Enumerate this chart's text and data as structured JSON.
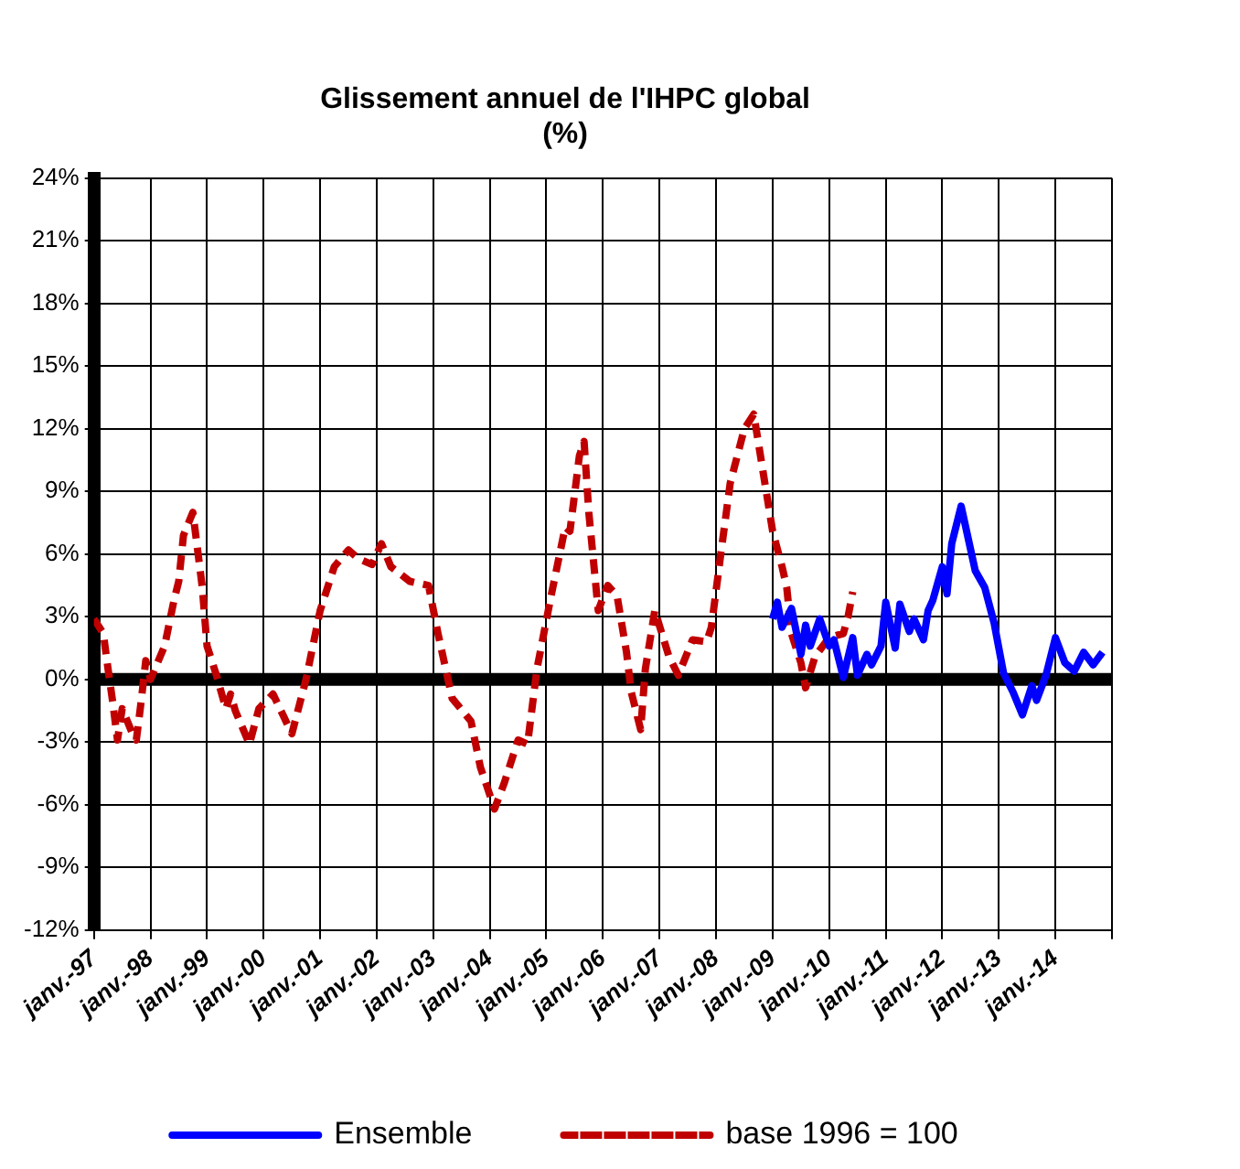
{
  "chart_data": {
    "type": "line",
    "title": "Glissement annuel de l'IHPC global\n(%)",
    "xlim": [
      "1997-01",
      "2015-01"
    ],
    "xticks": [
      {
        "value": "1997-01",
        "label": "janv.-97"
      },
      {
        "value": "1998-01",
        "label": "janv.-98"
      },
      {
        "value": "1999-01",
        "label": "janv.-99"
      },
      {
        "value": "2000-01",
        "label": "janv.-00"
      },
      {
        "value": "2001-01",
        "label": "janv.-01"
      },
      {
        "value": "2002-01",
        "label": "janv.-02"
      },
      {
        "value": "2003-01",
        "label": "janv.-03"
      },
      {
        "value": "2004-01",
        "label": "janv.-04"
      },
      {
        "value": "2005-01",
        "label": "janv.-05"
      },
      {
        "value": "2006-01",
        "label": "janv.-06"
      },
      {
        "value": "2007-01",
        "label": "janv.-07"
      },
      {
        "value": "2008-01",
        "label": "janv.-08"
      },
      {
        "value": "2009-01",
        "label": "janv.-09"
      },
      {
        "value": "2010-01",
        "label": "janv.-10"
      },
      {
        "value": "2011-01",
        "label": "janv.-11"
      },
      {
        "value": "2012-01",
        "label": "janv.-12"
      },
      {
        "value": "2013-01",
        "label": "janv.-13"
      },
      {
        "value": "2014-01",
        "label": "janv.-14"
      },
      {
        "value": "2015-01",
        "label": null
      }
    ],
    "ylim": [
      -12,
      24
    ],
    "yticks": [
      {
        "value": -12,
        "label": "-12%"
      },
      {
        "value": -9,
        "label": "-9%"
      },
      {
        "value": -6,
        "label": "-6%"
      },
      {
        "value": -3,
        "label": "-3%"
      },
      {
        "value": 0,
        "label": "0%"
      },
      {
        "value": 3,
        "label": "3%"
      },
      {
        "value": 6,
        "label": "6%"
      },
      {
        "value": 9,
        "label": "9%"
      },
      {
        "value": 12,
        "label": "12%"
      },
      {
        "value": 15,
        "label": "15%"
      },
      {
        "value": 18,
        "label": "18%"
      },
      {
        "value": 21,
        "label": "21%"
      },
      {
        "value": 24,
        "label": "24%"
      }
    ],
    "grid": true,
    "legend": "bottom",
    "marker": "none",
    "ref_lines": [
      {
        "axis": "y",
        "value": 0,
        "color": "#000000"
      }
    ],
    "series": [
      {
        "name": "Ensemble",
        "color": "#0000ff",
        "line_style": "solid",
        "x": [
          "2009-01",
          "2009-02",
          "2009-03",
          "2009-05",
          "2009-07",
          "2009-08",
          "2009-09",
          "2009-11",
          "2010-01",
          "2010-02",
          "2010-04",
          "2010-06",
          "2010-07",
          "2010-09",
          "2010-10",
          "2010-12",
          "2011-01",
          "2011-03",
          "2011-04",
          "2011-06",
          "2011-07",
          "2011-09",
          "2011-10",
          "2011-11",
          "2012-01",
          "2012-02",
          "2012-03",
          "2012-05",
          "2012-08",
          "2012-10",
          "2012-12",
          "2013-02",
          "2013-04",
          "2013-06",
          "2013-08",
          "2013-09",
          "2013-11",
          "2014-01",
          "2014-03",
          "2014-05",
          "2014-07",
          "2014-09",
          "2014-11"
        ],
        "values": [
          2.9,
          3.7,
          2.5,
          3.4,
          1.2,
          2.6,
          1.6,
          2.9,
          1.6,
          1.9,
          0.1,
          2.0,
          0.2,
          1.2,
          0.7,
          1.6,
          3.7,
          1.5,
          3.6,
          2.3,
          2.9,
          1.9,
          3.3,
          3.8,
          5.4,
          4.1,
          6.5,
          8.3,
          5.2,
          4.4,
          2.7,
          0.3,
          -0.6,
          -1.7,
          -0.3,
          -1.0,
          0.2,
          2.0,
          0.8,
          0.4,
          1.3,
          0.7,
          1.3
        ]
      },
      {
        "name": "base 1996 = 100",
        "color": "#c00000",
        "line_style": "dashed",
        "x": [
          "1997-01",
          "1997-03",
          "1997-04",
          "1997-05",
          "1997-06",
          "1997-07",
          "1997-09",
          "1997-10",
          "1997-11",
          "1997-12",
          "1998-01",
          "1998-04",
          "1998-06",
          "1998-07",
          "1998-08",
          "1998-10",
          "1998-12",
          "1999-01",
          "1999-03",
          "1999-05",
          "1999-06",
          "1999-07",
          "1999-10",
          "1999-12",
          "2000-03",
          "2000-07",
          "2000-10",
          "2001-01",
          "2001-04",
          "2001-07",
          "2001-09",
          "2001-12",
          "2002-02",
          "2002-04",
          "2002-08",
          "2002-12",
          "2003-02",
          "2003-05",
          "2003-09",
          "2003-11",
          "2004-02",
          "2004-04",
          "2004-07",
          "2004-09",
          "2004-11",
          "2005-02",
          "2005-05",
          "2005-06",
          "2005-08",
          "2005-09",
          "2005-10",
          "2005-12",
          "2006-02",
          "2006-04",
          "2006-06",
          "2006-07",
          "2006-09",
          "2006-10",
          "2006-12",
          "2007-03",
          "2007-05",
          "2007-08",
          "2007-11",
          "2007-12",
          "2008-02",
          "2008-04",
          "2008-07",
          "2008-09",
          "2008-11",
          "2009-01",
          "2009-03",
          "2009-04",
          "2009-05",
          "2009-07",
          "2009-08",
          "2009-10",
          "2010-01",
          "2010-04",
          "2010-05",
          "2010-06"
        ],
        "values": [
          2.9,
          2.2,
          0.5,
          -1.1,
          -2.9,
          -1.4,
          -2.5,
          -2.9,
          -1.1,
          0.9,
          0,
          1.6,
          3.8,
          4.7,
          6.9,
          8.0,
          4.4,
          1.6,
          0.2,
          -1.4,
          -0.7,
          -1.5,
          -3.1,
          -1.4,
          -0.7,
          -2.6,
          0,
          3.3,
          5.4,
          6.2,
          5.8,
          5.5,
          6.5,
          5.4,
          4.7,
          4.5,
          2.2,
          -0.9,
          -2.0,
          -4.2,
          -6.2,
          -5.0,
          -2.9,
          -3.1,
          0.5,
          4.0,
          7.3,
          7.1,
          10.7,
          11.4,
          8.0,
          3.3,
          4.5,
          4.0,
          1.3,
          -0.6,
          -2.4,
          0.5,
          3.3,
          1.1,
          0.2,
          1.9,
          1.8,
          2.5,
          6.0,
          9.4,
          12.0,
          12.7,
          9.9,
          7.1,
          5.4,
          4.4,
          2.2,
          0.8,
          -0.4,
          1.1,
          2.0,
          2.2,
          3.0,
          4.2
        ]
      }
    ]
  }
}
